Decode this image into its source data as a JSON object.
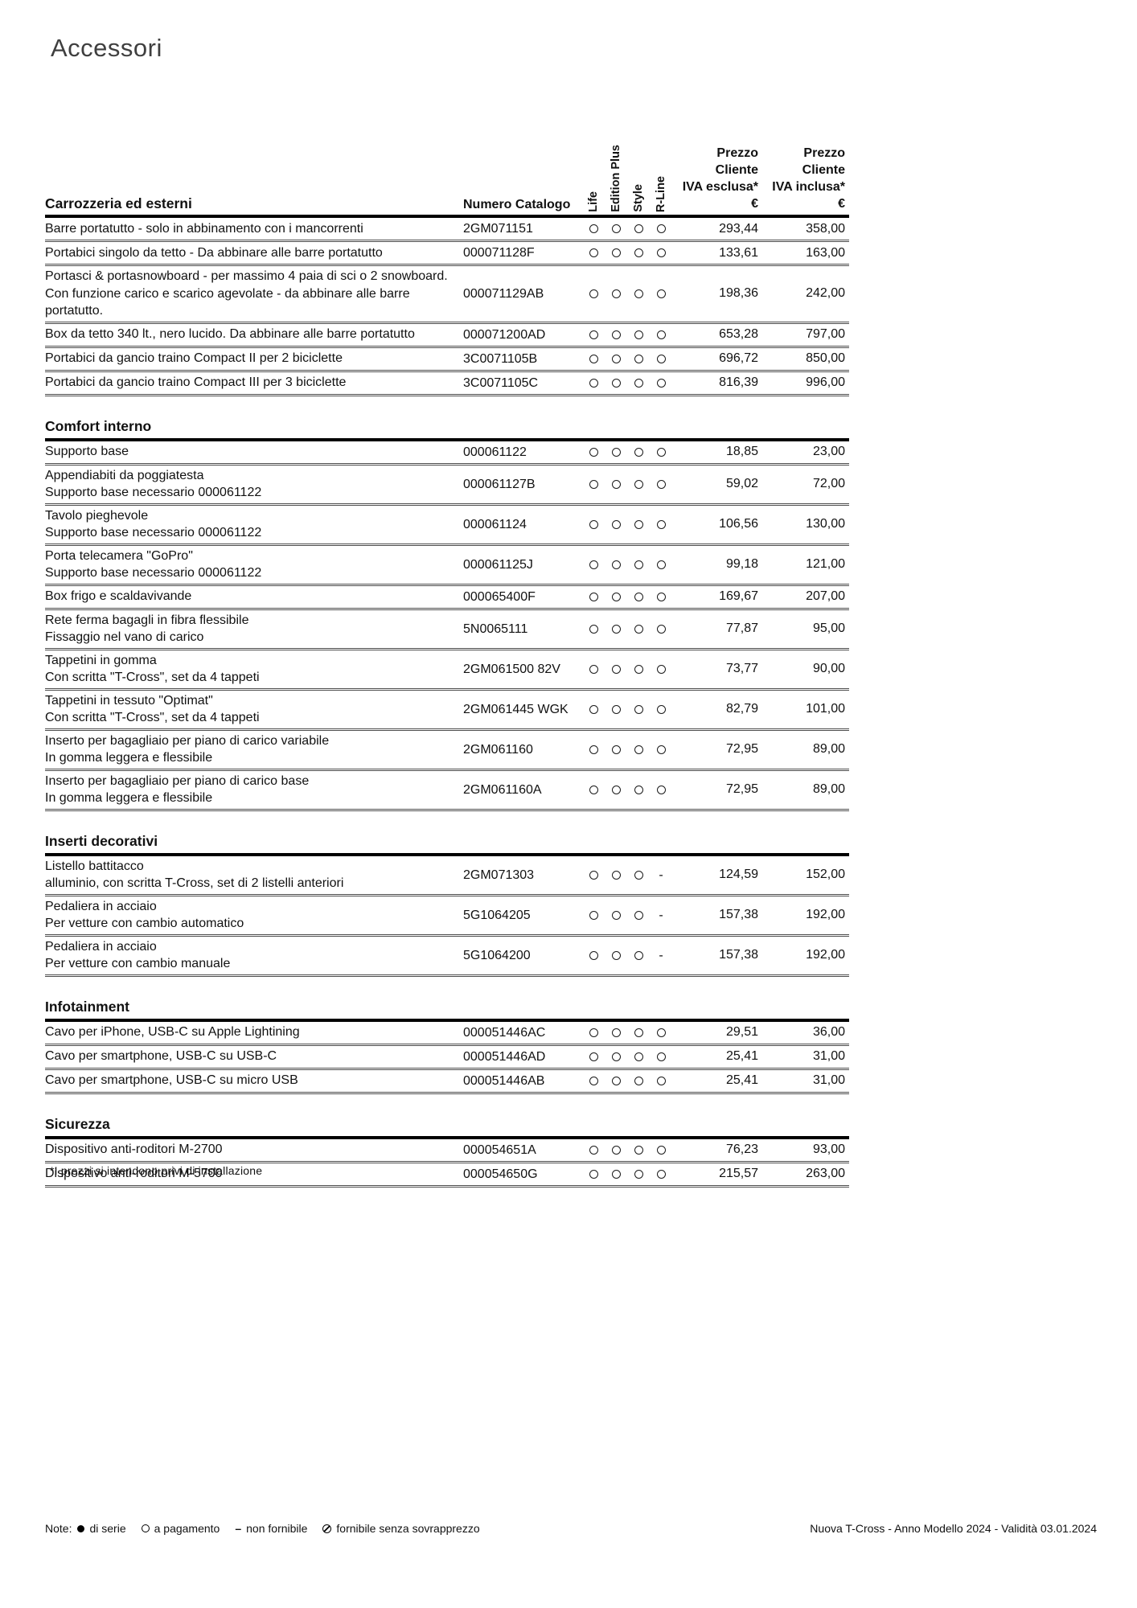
{
  "page": {
    "title": "Accessori",
    "footnote": "*I prezzi si intendono privi di installazione",
    "footer": {
      "note_label": "Note:",
      "legend": [
        {
          "symbol": "filled-circle",
          "label": "di serie"
        },
        {
          "symbol": "empty-circle",
          "label": "a pagamento"
        },
        {
          "symbol": "dash",
          "label": "non fornibile"
        },
        {
          "symbol": "slashed-circle",
          "label": "fornibile senza sovrapprezzo"
        }
      ],
      "right_text": "Nuova T-Cross - Anno Modello 2024 - Validità 03.01.2024"
    }
  },
  "table": {
    "columns": {
      "catalog": "Numero Catalogo",
      "trims": [
        "Life",
        "Edition Plus",
        "Style",
        "R-Line"
      ],
      "price_excl": [
        "Prezzo Cliente",
        "IVA esclusa*",
        "€"
      ],
      "price_incl": [
        "Prezzo Cliente",
        "IVA inclusa*",
        "€"
      ]
    },
    "sections": [
      {
        "name": "Carrozzeria ed esterni",
        "rows": [
          {
            "lines": [
              "Barre portatutto - solo in abbinamento con i mancorrenti"
            ],
            "catalog": "2GM071151",
            "trims": [
              "circle",
              "circle",
              "circle",
              "circle"
            ],
            "price_excl": "293,44",
            "price_incl": "358,00"
          },
          {
            "lines": [
              "Portabici singolo da tetto - Da abbinare alle barre portatutto"
            ],
            "catalog": "000071128F",
            "trims": [
              "circle",
              "circle",
              "circle",
              "circle"
            ],
            "price_excl": "133,61",
            "price_incl": "163,00"
          },
          {
            "lines": [
              "Portasci & portasnowboard - per massimo 4 paia di sci o 2 snowboard.",
              "Con funzione carico e scarico agevolate - da abbinare alle barre portatutto."
            ],
            "catalog": "000071129AB",
            "trims": [
              "circle",
              "circle",
              "circle",
              "circle"
            ],
            "price_excl": "198,36",
            "price_incl": "242,00"
          },
          {
            "lines": [
              "Box da tetto 340 lt., nero lucido. Da abbinare alle barre portatutto"
            ],
            "catalog": "000071200AD",
            "trims": [
              "circle",
              "circle",
              "circle",
              "circle"
            ],
            "price_excl": "653,28",
            "price_incl": "797,00"
          },
          {
            "lines": [
              "Portabici da gancio traino Compact II per 2 biciclette"
            ],
            "catalog": "3C0071105B",
            "trims": [
              "circle",
              "circle",
              "circle",
              "circle"
            ],
            "price_excl": "696,72",
            "price_incl": "850,00"
          },
          {
            "lines": [
              "Portabici da gancio traino Compact III per 3 biciclette"
            ],
            "catalog": "3C0071105C",
            "trims": [
              "circle",
              "circle",
              "circle",
              "circle"
            ],
            "price_excl": "816,39",
            "price_incl": "996,00"
          }
        ]
      },
      {
        "name": "Comfort interno",
        "rows": [
          {
            "lines": [
              "Supporto base"
            ],
            "catalog": "000061122",
            "trims": [
              "circle",
              "circle",
              "circle",
              "circle"
            ],
            "price_excl": "18,85",
            "price_incl": "23,00"
          },
          {
            "lines": [
              "Appendiabiti da poggiatesta",
              "Supporto base necessario 000061122"
            ],
            "catalog": "000061127B",
            "trims": [
              "circle",
              "circle",
              "circle",
              "circle"
            ],
            "price_excl": "59,02",
            "price_incl": "72,00"
          },
          {
            "lines": [
              "Tavolo pieghevole",
              "Supporto base necessario 000061122"
            ],
            "catalog": "000061124",
            "trims": [
              "circle",
              "circle",
              "circle",
              "circle"
            ],
            "price_excl": "106,56",
            "price_incl": "130,00"
          },
          {
            "lines": [
              "Porta telecamera \"GoPro\"",
              "Supporto base necessario 000061122"
            ],
            "catalog": "000061125J",
            "trims": [
              "circle",
              "circle",
              "circle",
              "circle"
            ],
            "price_excl": "99,18",
            "price_incl": "121,00"
          },
          {
            "lines": [
              "Box frigo e scaldavivande"
            ],
            "catalog": "000065400F",
            "trims": [
              "circle",
              "circle",
              "circle",
              "circle"
            ],
            "price_excl": "169,67",
            "price_incl": "207,00"
          },
          {
            "lines": [
              "Rete ferma bagagli in fibra flessibile",
              "Fissaggio nel vano di carico"
            ],
            "catalog": "5N0065111",
            "trims": [
              "circle",
              "circle",
              "circle",
              "circle"
            ],
            "price_excl": "77,87",
            "price_incl": "95,00"
          },
          {
            "lines": [
              "Tappetini in gomma",
              "Con scritta \"T-Cross\", set da 4 tappeti"
            ],
            "catalog": "2GM061500  82V",
            "trims": [
              "circle",
              "circle",
              "circle",
              "circle"
            ],
            "price_excl": "73,77",
            "price_incl": "90,00"
          },
          {
            "lines": [
              "Tappetini in tessuto \"Optimat\"",
              "Con scritta \"T-Cross\", set da 4 tappeti"
            ],
            "catalog": "2GM061445  WGK",
            "trims": [
              "circle",
              "circle",
              "circle",
              "circle"
            ],
            "price_excl": "82,79",
            "price_incl": "101,00"
          },
          {
            "lines": [
              "Inserto per bagagliaio per piano di carico variabile",
              "In gomma leggera e  flessibile"
            ],
            "catalog": "2GM061160",
            "trims": [
              "circle",
              "circle",
              "circle",
              "circle"
            ],
            "price_excl": "72,95",
            "price_incl": "89,00"
          },
          {
            "lines": [
              "Inserto per bagagliaio per piano di carico base",
              "In gomma leggera e  flessibile"
            ],
            "catalog": "2GM061160A",
            "trims": [
              "circle",
              "circle",
              "circle",
              "circle"
            ],
            "price_excl": "72,95",
            "price_incl": "89,00"
          }
        ]
      },
      {
        "name": "Inserti decorativi",
        "rows": [
          {
            "lines": [
              "Listello battitacco",
              "alluminio, con scritta T-Cross, set di 2 listelli anteriori"
            ],
            "catalog": "2GM071303",
            "trims": [
              "circle",
              "circle",
              "circle",
              "dash"
            ],
            "price_excl": "124,59",
            "price_incl": "152,00"
          },
          {
            "lines": [
              "Pedaliera in acciaio",
              "Per vetture con cambio automatico"
            ],
            "catalog": "5G1064205",
            "trims": [
              "circle",
              "circle",
              "circle",
              "dash"
            ],
            "price_excl": "157,38",
            "price_incl": "192,00"
          },
          {
            "lines": [
              "Pedaliera in acciaio",
              "Per vetture con cambio manuale"
            ],
            "catalog": "5G1064200",
            "trims": [
              "circle",
              "circle",
              "circle",
              "dash"
            ],
            "price_excl": "157,38",
            "price_incl": "192,00"
          }
        ]
      },
      {
        "name": "Infotainment",
        "rows": [
          {
            "lines": [
              "Cavo per iPhone, USB-C su Apple Lightining"
            ],
            "catalog": "000051446AC",
            "trims": [
              "circle",
              "circle",
              "circle",
              "circle"
            ],
            "price_excl": "29,51",
            "price_incl": "36,00"
          },
          {
            "lines": [
              "Cavo per smartphone, USB-C su USB-C"
            ],
            "catalog": "000051446AD",
            "trims": [
              "circle",
              "circle",
              "circle",
              "circle"
            ],
            "price_excl": "25,41",
            "price_incl": "31,00"
          },
          {
            "lines": [
              "Cavo per smartphone, USB-C su micro USB"
            ],
            "catalog": "000051446AB",
            "trims": [
              "circle",
              "circle",
              "circle",
              "circle"
            ],
            "price_excl": "25,41",
            "price_incl": "31,00"
          }
        ]
      },
      {
        "name": "Sicurezza",
        "rows": [
          {
            "lines": [
              "Dispositivo anti-roditori M-2700"
            ],
            "catalog": "000054651A",
            "trims": [
              "circle",
              "circle",
              "circle",
              "circle"
            ],
            "price_excl": "76,23",
            "price_incl": "93,00"
          },
          {
            "lines": [
              "Dispositivo anti-roditori M-5700"
            ],
            "catalog": "000054650G",
            "trims": [
              "circle",
              "circle",
              "circle",
              "circle"
            ],
            "price_excl": "215,57",
            "price_incl": "263,00"
          }
        ]
      }
    ]
  }
}
